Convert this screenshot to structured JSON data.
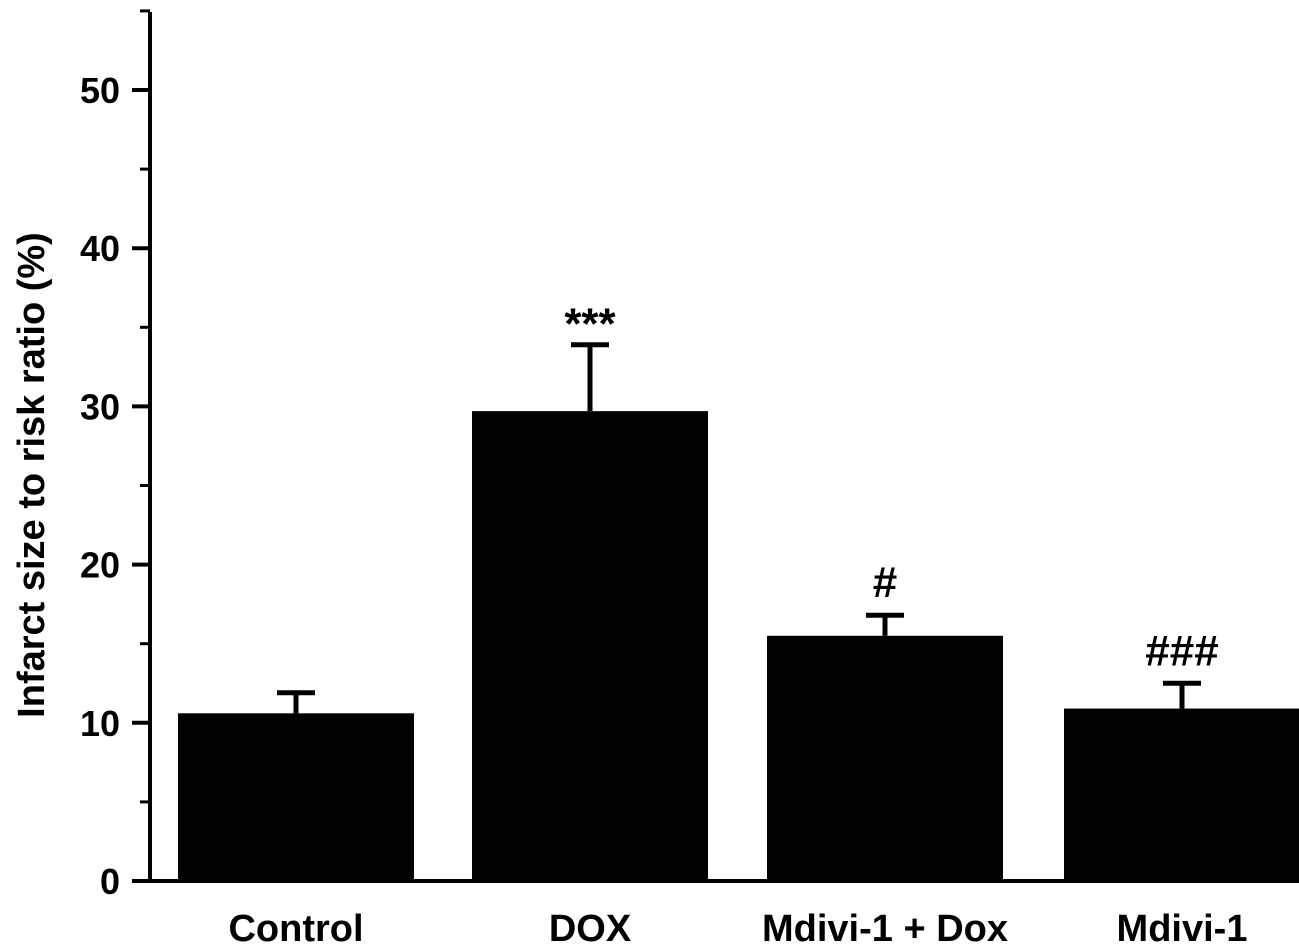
{
  "chart_data": {
    "type": "bar",
    "title": "",
    "xlabel": "",
    "ylabel": "Infarct size to risk ratio (%)",
    "ylim": [
      0,
      55
    ],
    "yticks": [
      0,
      10,
      20,
      30,
      40,
      50
    ],
    "minor_tick_step": 5,
    "grid": false,
    "legend": "none",
    "bar_color": "#000000",
    "categories": [
      "Control",
      "DOX",
      "Mdivi-1 + Dox",
      "Mdivi-1"
    ],
    "values": [
      10.6,
      29.7,
      15.5,
      10.9
    ],
    "errors": [
      1.3,
      4.2,
      1.3,
      1.6
    ],
    "annotations": [
      "",
      "***",
      "#",
      "###"
    ]
  }
}
